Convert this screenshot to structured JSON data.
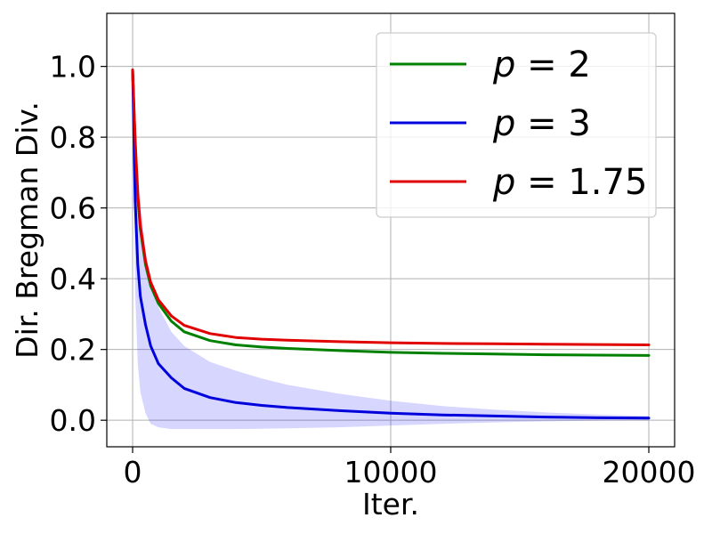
{
  "chart_data": {
    "type": "line",
    "title": "",
    "xlabel": "Iter.",
    "ylabel": "Dir. Bregman Div.",
    "xlim": [
      -1000,
      21000
    ],
    "ylim": [
      -0.075,
      1.15
    ],
    "x_ticks": [
      0,
      10000,
      20000
    ],
    "x_tick_labels": [
      "0",
      "10000",
      "20000"
    ],
    "y_ticks": [
      0.0,
      0.2,
      0.4,
      0.6,
      0.8,
      1.0
    ],
    "y_tick_labels": [
      "0.0",
      "0.2",
      "0.4",
      "0.6",
      "0.8",
      "1.0"
    ],
    "grid": true,
    "legend_position": "top-right",
    "x": [
      0,
      100,
      200,
      300,
      500,
      700,
      1000,
      1500,
      2000,
      3000,
      4000,
      5000,
      6000,
      8000,
      10000,
      12000,
      14000,
      16000,
      18000,
      20000
    ],
    "series": [
      {
        "name": "p = 2",
        "legend_var": "p",
        "legend_value": "= 2",
        "color": "#008000",
        "values": [
          0.99,
          0.78,
          0.63,
          0.54,
          0.44,
          0.38,
          0.33,
          0.28,
          0.25,
          0.225,
          0.213,
          0.207,
          0.203,
          0.197,
          0.192,
          0.189,
          0.187,
          0.185,
          0.184,
          0.183
        ]
      },
      {
        "name": "p = 3",
        "legend_var": "p",
        "legend_value": "= 3",
        "color": "#0000dd",
        "values": [
          0.99,
          0.62,
          0.44,
          0.35,
          0.27,
          0.21,
          0.16,
          0.12,
          0.09,
          0.064,
          0.05,
          0.042,
          0.036,
          0.027,
          0.02,
          0.015,
          0.012,
          0.009,
          0.007,
          0.006
        ],
        "band_upper": [
          0.99,
          0.88,
          0.72,
          0.62,
          0.48,
          0.4,
          0.32,
          0.25,
          0.21,
          0.165,
          0.14,
          0.118,
          0.1,
          0.075,
          0.055,
          0.04,
          0.03,
          0.022,
          0.016,
          0.012
        ],
        "band_lower": [
          0.99,
          0.36,
          0.16,
          0.08,
          0.02,
          -0.01,
          -0.02,
          -0.025,
          -0.025,
          -0.025,
          -0.025,
          -0.024,
          -0.023,
          -0.02,
          -0.015,
          -0.01,
          -0.006,
          -0.003,
          -0.001,
          0.0
        ],
        "band_color": "#0000ff",
        "band_opacity": 0.16
      },
      {
        "name": "p = 1.75",
        "legend_var": "p",
        "legend_value": "= 1.75",
        "color": "#e00000",
        "values": [
          0.99,
          0.79,
          0.64,
          0.55,
          0.45,
          0.39,
          0.34,
          0.295,
          0.268,
          0.245,
          0.234,
          0.229,
          0.226,
          0.222,
          0.219,
          0.217,
          0.216,
          0.215,
          0.214,
          0.213
        ]
      }
    ]
  }
}
